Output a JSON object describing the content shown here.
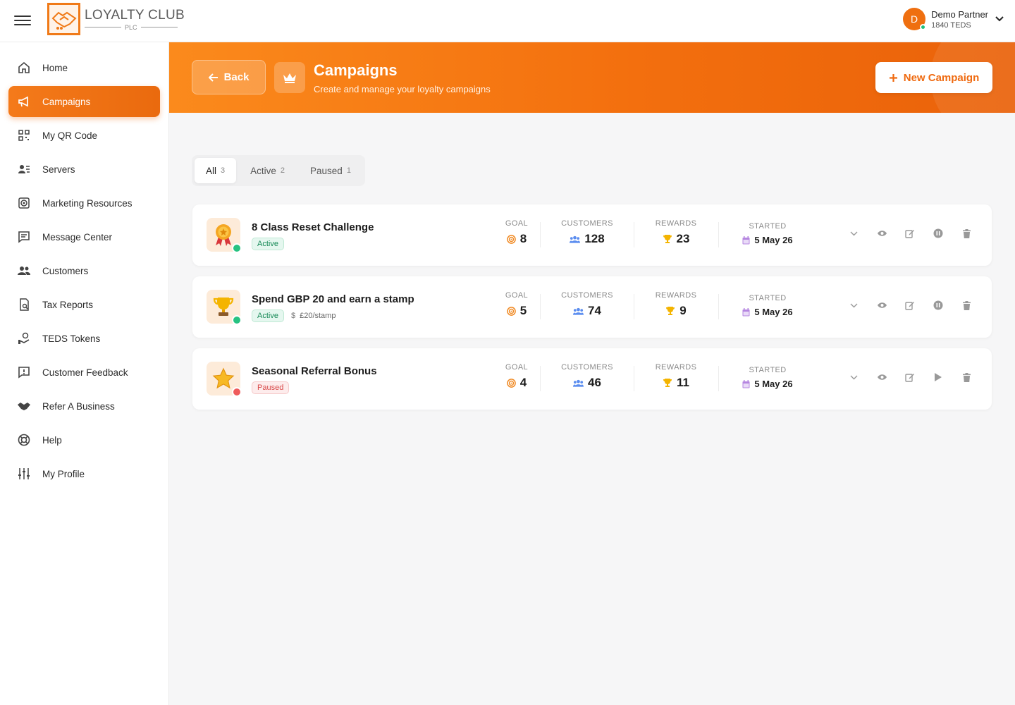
{
  "app": {
    "logo_title": "LOYALTY CLUB",
    "logo_sub": "PLC"
  },
  "user": {
    "initial": "D",
    "name": "Demo Partner",
    "balance": "1840 TEDS"
  },
  "sidebar": {
    "items": [
      {
        "label": "Home",
        "icon": "home-icon"
      },
      {
        "label": "Campaigns",
        "icon": "megaphone-icon"
      },
      {
        "label": "My QR Code",
        "icon": "qr-code-icon"
      },
      {
        "label": "Servers",
        "icon": "user-list-icon"
      },
      {
        "label": "Marketing Resources",
        "icon": "target-icon"
      },
      {
        "label": "Message Center",
        "icon": "message-icon"
      },
      {
        "label": "Customers",
        "icon": "users-icon"
      },
      {
        "label": "Tax Reports",
        "icon": "report-icon"
      },
      {
        "label": "TEDS Tokens",
        "icon": "tokens-icon"
      },
      {
        "label": "Customer Feedback",
        "icon": "feedback-icon"
      },
      {
        "label": "Refer A Business",
        "icon": "handshake-icon"
      },
      {
        "label": "Help",
        "icon": "lifebuoy-icon"
      },
      {
        "label": "My Profile",
        "icon": "sliders-icon"
      }
    ]
  },
  "header": {
    "back_label": "Back",
    "title": "Campaigns",
    "subtitle": "Create and manage your loyalty campaigns",
    "new_label": "New Campaign"
  },
  "tabs": [
    {
      "label": "All",
      "count": "3"
    },
    {
      "label": "Active",
      "count": "2"
    },
    {
      "label": "Paused",
      "count": "1"
    }
  ],
  "stat_labels": {
    "goal": "GOAL",
    "customers": "CUSTOMERS",
    "rewards": "REWARDS",
    "started": "STARTED"
  },
  "campaigns": [
    {
      "name": "8 Class Reset Challenge",
      "status": "Active",
      "rate": "",
      "goal": "8",
      "customers": "128",
      "rewards": "23",
      "started": "5 May 26",
      "icon": "medal-icon"
    },
    {
      "name": "Spend GBP 20 and earn a stamp",
      "status": "Active",
      "rate": "£20/stamp",
      "goal": "5",
      "customers": "74",
      "rewards": "9",
      "started": "5 May 26",
      "icon": "trophy-icon"
    },
    {
      "name": "Seasonal Referral Bonus",
      "status": "Paused",
      "rate": "",
      "goal": "4",
      "customers": "46",
      "rewards": "11",
      "started": "5 May 26",
      "icon": "star-icon"
    }
  ],
  "colors": {
    "accent": "#f07a18",
    "active_dot": "#26c281",
    "paused_dot": "#ef5b5b"
  }
}
